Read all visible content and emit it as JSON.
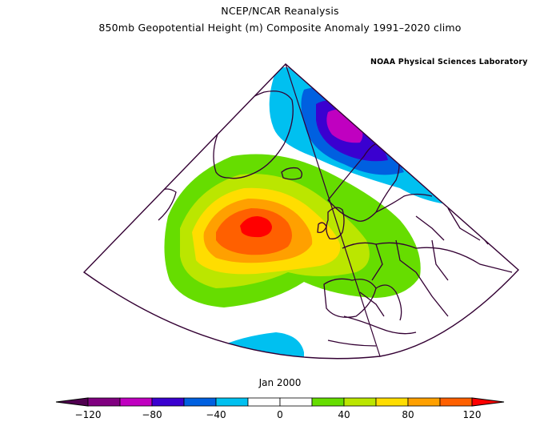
{
  "titles": {
    "line1": "NCEP/NCAR Reanalysis",
    "line2": "850mb Geopotential Height (m) Composite Anomaly 1991–2020 climo",
    "credit": "NOAA Physical Sciences Laboratory"
  },
  "date": "Jan 2000",
  "colorbar": {
    "min": -120,
    "max": 120,
    "step": 20,
    "tick_labels": [
      "−120",
      "−80",
      "−40",
      "0",
      "40",
      "80",
      "120"
    ],
    "tick_values": [
      -120,
      -80,
      -40,
      0,
      40,
      80,
      120
    ],
    "colors": [
      "#800080",
      "#c000c0",
      "#3a00d0",
      "#0060e0",
      "#00c0f0",
      "#ffffff",
      "#ffffff",
      "#66dd00",
      "#bbe600",
      "#ffdd00",
      "#ffa000",
      "#ff6000"
    ],
    "under_color": "#500050",
    "over_color": "#ff0000"
  },
  "map_colors": {
    "positive_40": "#66dd00",
    "positive_60": "#bbe600",
    "positive_80": "#ffdd00",
    "positive_100": "#ffa000",
    "positive_120": "#ff6000",
    "positive_max": "#ff0000",
    "negative_40": "#00c0f0",
    "negative_60": "#0060e0",
    "negative_80": "#3a00d0",
    "negative_100": "#c000c0",
    "outline": "#330033"
  }
}
